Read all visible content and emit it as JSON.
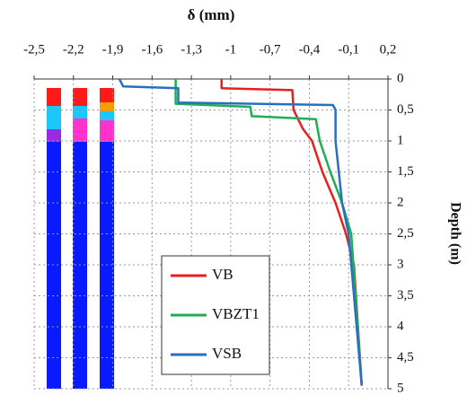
{
  "chart_data": {
    "type": "line",
    "title": "δ (mm)",
    "y_label": "Depth (m)",
    "xlim": [
      -2.5,
      0.2
    ],
    "xticks": [
      {
        "value": -2.5,
        "label": "-2,5"
      },
      {
        "value": -2.2,
        "label": "-2,2"
      },
      {
        "value": -1.9,
        "label": "-1,9"
      },
      {
        "value": -1.6,
        "label": "-1,6"
      },
      {
        "value": -1.3,
        "label": "-1,3"
      },
      -1,
      {
        "value": -0.7,
        "label": "-0,7"
      },
      {
        "value": -0.4,
        "label": "-0,4"
      },
      {
        "value": -0.1,
        "label": "-0,1"
      },
      {
        "value": 0.2,
        "label": "0,2"
      }
    ],
    "ylim": [
      0,
      5
    ],
    "yticks": [
      0,
      {
        "value": 0.5,
        "label": "0,5"
      },
      1,
      {
        "value": 1.5,
        "label": "1,5"
      },
      2,
      {
        "value": 2.5,
        "label": "2,5"
      },
      3,
      {
        "value": 3.5,
        "label": "3,5"
      },
      4,
      {
        "value": 4.5,
        "label": "4,5"
      },
      5
    ],
    "y_inverted": true,
    "grid": true,
    "legend": "lower center",
    "series": [
      {
        "name": "VB",
        "color": "#e5201f",
        "x": [
          -1.07,
          -1.07,
          -0.53,
          -0.52,
          -0.45,
          -0.38,
          -0.3,
          -0.2,
          -0.12,
          -0.06,
          0.0
        ],
        "y": [
          0,
          0.15,
          0.18,
          0.5,
          0.8,
          1.0,
          1.5,
          2.0,
          2.5,
          3.0,
          4.95
        ]
      },
      {
        "name": "VBZT1",
        "color": "#1fae52",
        "x": [
          -1.42,
          -1.42,
          -0.85,
          -0.84,
          -0.35,
          -0.32,
          -0.24,
          -0.15,
          -0.08,
          0.0
        ],
        "y": [
          0,
          0.4,
          0.45,
          0.6,
          0.65,
          1.0,
          1.5,
          2.0,
          2.5,
          4.95
        ]
      },
      {
        "name": "VSB",
        "color": "#2a6fbf",
        "x": [
          -1.85,
          -1.82,
          -1.4,
          -1.4,
          -0.22,
          -0.2,
          -0.2,
          -0.15,
          -0.1,
          0.0
        ],
        "y": [
          0,
          0.12,
          0.15,
          0.38,
          0.42,
          0.5,
          1.0,
          2.0,
          2.5,
          4.95
        ]
      }
    ]
  }
}
